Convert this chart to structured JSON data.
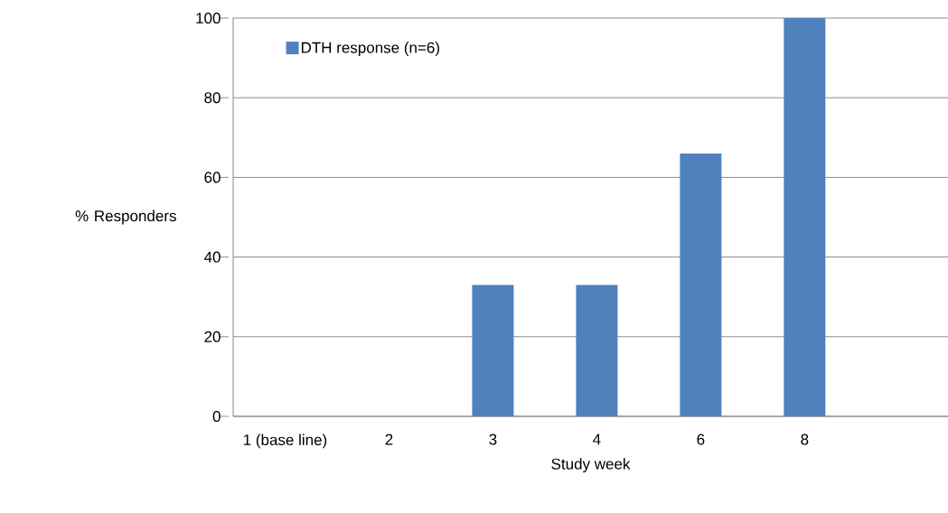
{
  "chart_data": {
    "type": "bar",
    "categories": [
      "1 (base line)",
      "2",
      "3",
      "4",
      "6",
      "8"
    ],
    "series": [
      {
        "name": "DTH response (n=6)",
        "color": "#4f81bd",
        "values": [
          0,
          0,
          33,
          33,
          66,
          100
        ]
      }
    ],
    "xlabel": "Study week",
    "ylabel": "% Responders",
    "ylim": [
      0,
      100
    ],
    "yticks": [
      0,
      20,
      40,
      60,
      80,
      100
    ],
    "grid": "y",
    "legend": "top left"
  }
}
